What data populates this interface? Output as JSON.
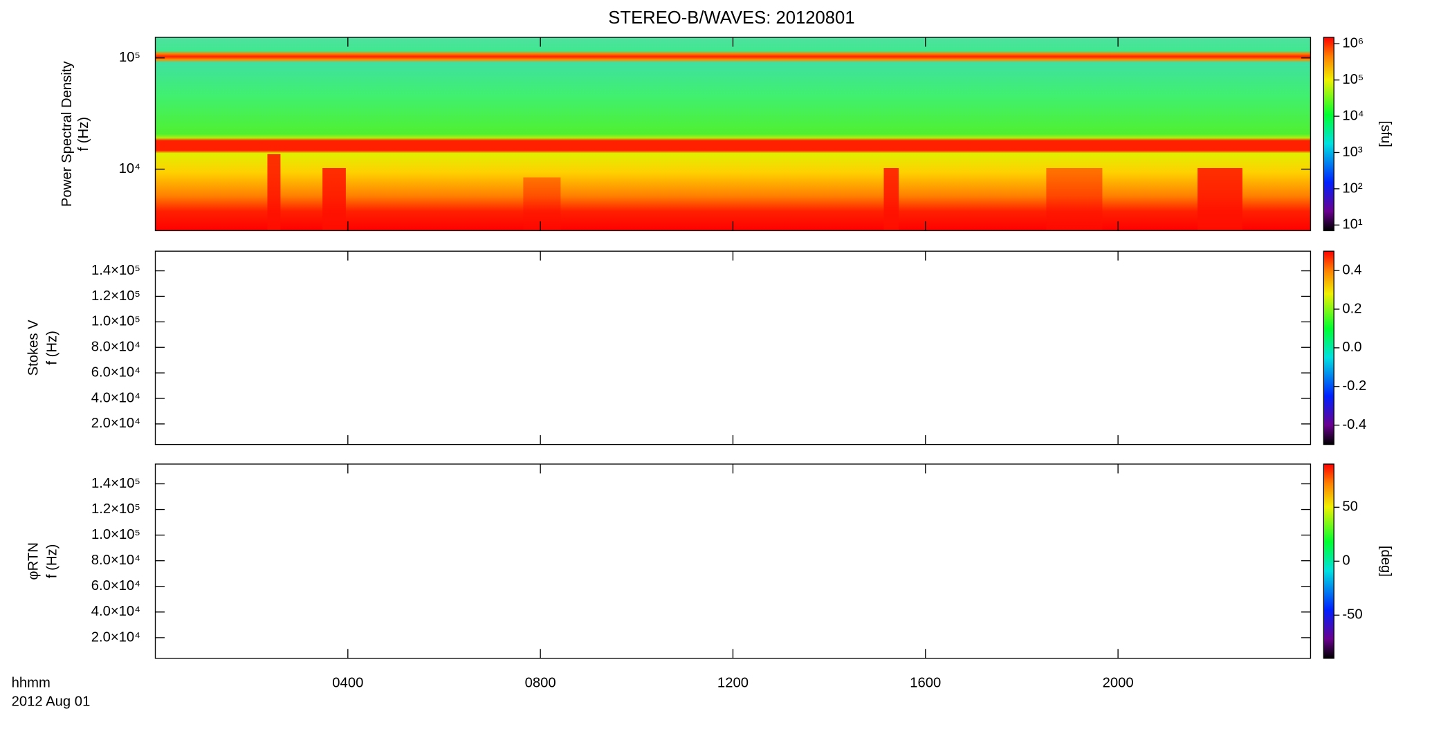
{
  "chart_data": {
    "title": "STEREO-B/WAVES: 20120801",
    "xlabel": [
      "hhmm",
      "2012 Aug 01"
    ],
    "xlim": [
      0,
      24
    ],
    "xticks": [
      {
        "value": 4,
        "label": "0400"
      },
      {
        "value": 8,
        "label": "0800"
      },
      {
        "value": 12,
        "label": "1200"
      },
      {
        "value": 16,
        "label": "1600"
      },
      {
        "value": 20,
        "label": "2000"
      }
    ],
    "panels": [
      {
        "type": "heatmap",
        "ylabel": [
          "Power Spectral Density",
          "f (Hz)"
        ],
        "yscale": "log",
        "ylim": [
          2800,
          153000
        ],
        "yticks": [
          {
            "value": 10000,
            "label": "10⁴"
          },
          {
            "value": 100000,
            "label": "10⁵"
          }
        ],
        "cscale": "log",
        "clim": [
          7,
          1500000
        ],
        "clabel": "[sfu]",
        "cticks": [
          {
            "value": 10,
            "label": "10¹"
          },
          {
            "value": 100,
            "label": "10²"
          },
          {
            "value": 1000,
            "label": "10³"
          },
          {
            "value": 10000,
            "label": "10⁴"
          },
          {
            "value": 100000,
            "label": "10⁵"
          },
          {
            "value": 1000000,
            "label": "10⁶"
          }
        ]
      },
      {
        "type": "heatmap",
        "ylabel": [
          "Stokes V",
          "f (Hz)"
        ],
        "yscale": "linear",
        "ylim": [
          3900,
          155400
        ],
        "yticks": [
          {
            "value": 20000,
            "label": "2.0×10⁴"
          },
          {
            "value": 40000,
            "label": "4.0×10⁴"
          },
          {
            "value": 60000,
            "label": "6.0×10⁴"
          },
          {
            "value": 80000,
            "label": "8.0×10⁴"
          },
          {
            "value": 100000,
            "label": "1.0×10⁵"
          },
          {
            "value": 120000,
            "label": "1.2×10⁵"
          },
          {
            "value": 140000,
            "label": "1.4×10⁵"
          }
        ],
        "cscale": "linear",
        "clim": [
          -0.5,
          0.5
        ],
        "cticks": [
          {
            "value": -0.4,
            "label": "-0.4"
          },
          {
            "value": -0.2,
            "label": "-0.2"
          },
          {
            "value": 0,
            "label": "0.0"
          },
          {
            "value": 0.2,
            "label": "0.2"
          },
          {
            "value": 0.4,
            "label": "0.4"
          }
        ]
      },
      {
        "type": "heatmap",
        "ylabel": [
          "φRTN",
          "f (Hz)"
        ],
        "yscale": "linear",
        "ylim": [
          3900,
          155400
        ],
        "yticks": [
          {
            "value": 20000,
            "label": "2.0×10⁴"
          },
          {
            "value": 40000,
            "label": "4.0×10⁴"
          },
          {
            "value": 60000,
            "label": "6.0×10⁴"
          },
          {
            "value": 80000,
            "label": "8.0×10⁴"
          },
          {
            "value": 100000,
            "label": "1.0×10⁵"
          },
          {
            "value": 120000,
            "label": "1.2×10⁵"
          },
          {
            "value": 140000,
            "label": "1.4×10⁵"
          }
        ],
        "cscale": "linear",
        "clim": [
          -90,
          90
        ],
        "clabel": "[deg]",
        "cticks": [
          -50,
          0,
          50
        ]
      }
    ]
  }
}
